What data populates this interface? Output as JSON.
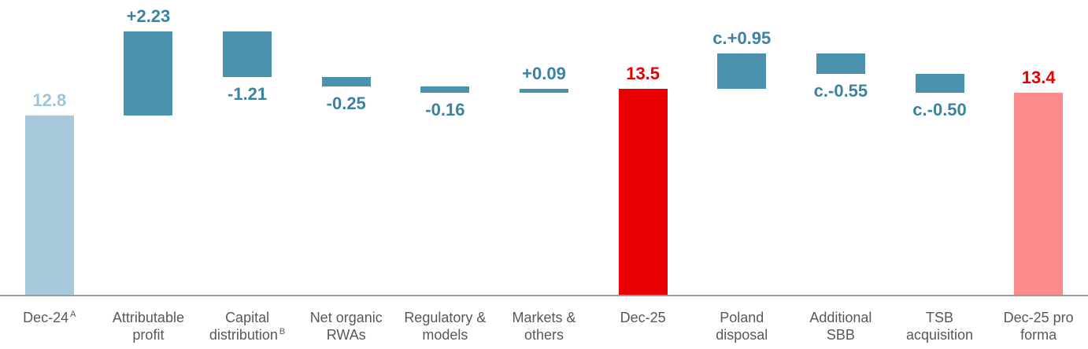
{
  "chart_data": {
    "type": "waterfall",
    "title": "",
    "xlabel": "",
    "ylabel": "",
    "unit": "%",
    "ylim": [
      8.03,
      15.1
    ],
    "grid": false,
    "legend": false,
    "start_value": 12.8,
    "end_value": 13.4,
    "bars": [
      {
        "category_lines": [
          "Dec-24"
        ],
        "category_sup": "A",
        "kind": "absolute",
        "value": 12.8,
        "value_label": "12.8",
        "label_position": "above",
        "bar_color_key": "light_blue",
        "label_color_key": "light_blue_text"
      },
      {
        "category_lines": [
          "Attributable",
          "profit"
        ],
        "kind": "delta",
        "value": 2.23,
        "value_label": "+2.23",
        "label_position": "above",
        "bar_color_key": "teal",
        "label_color_key": "teal_text"
      },
      {
        "category_lines": [
          "Capital",
          "distribution"
        ],
        "category_sup": "B",
        "kind": "delta",
        "value": -1.21,
        "value_label": "-1.21",
        "label_position": "below",
        "bar_color_key": "teal",
        "label_color_key": "teal_text"
      },
      {
        "category_lines": [
          "Net organic",
          "RWAs"
        ],
        "kind": "delta",
        "value": -0.25,
        "value_label": "-0.25",
        "label_position": "below",
        "bar_color_key": "teal",
        "label_color_key": "teal_text"
      },
      {
        "category_lines": [
          "Regulatory &",
          "models"
        ],
        "kind": "delta",
        "value": -0.16,
        "value_label": "-0.16",
        "label_position": "below",
        "bar_color_key": "teal",
        "label_color_key": "teal_text"
      },
      {
        "category_lines": [
          "Markets &",
          "others"
        ],
        "kind": "delta",
        "value": 0.09,
        "value_label": "+0.09",
        "label_position": "above",
        "bar_color_key": "teal",
        "label_color_key": "teal_text"
      },
      {
        "category_lines": [
          "Dec-25"
        ],
        "kind": "absolute",
        "value": 13.5,
        "value_label": "13.5",
        "label_position": "above",
        "bar_color_key": "red",
        "label_color_key": "red_text"
      },
      {
        "category_lines": [
          "Poland",
          "disposal"
        ],
        "kind": "delta",
        "value": 0.95,
        "value_label": "c.+0.95",
        "label_position": "above",
        "bar_color_key": "teal",
        "label_color_key": "teal_text"
      },
      {
        "category_lines": [
          "Additional",
          "SBB"
        ],
        "kind": "delta",
        "value": -0.55,
        "value_label": "c.-0.55",
        "label_position": "below",
        "bar_color_key": "teal",
        "label_color_key": "teal_text"
      },
      {
        "category_lines": [
          "TSB",
          "acquisition"
        ],
        "kind": "delta",
        "value": -0.5,
        "value_label": "c.-0.50",
        "label_position": "below",
        "bar_color_key": "teal",
        "label_color_key": "teal_text"
      },
      {
        "category_lines": [
          "Dec-25 pro",
          "forma"
        ],
        "kind": "absolute",
        "value": 13.4,
        "value_label": "13.4",
        "label_position": "above",
        "bar_color_key": "pink",
        "label_color_key": "red_text"
      }
    ],
    "colors": {
      "light_blue": "#A7C9DC",
      "teal": "#4C92AE",
      "red": "#E90000",
      "pink": "#FB8C8B",
      "light_blue_text": "#9DC4D9",
      "teal_text": "#3C82A3",
      "red_text": "#E60000",
      "axis_line": "#9C9C9C",
      "category_text": "#58585A"
    }
  }
}
